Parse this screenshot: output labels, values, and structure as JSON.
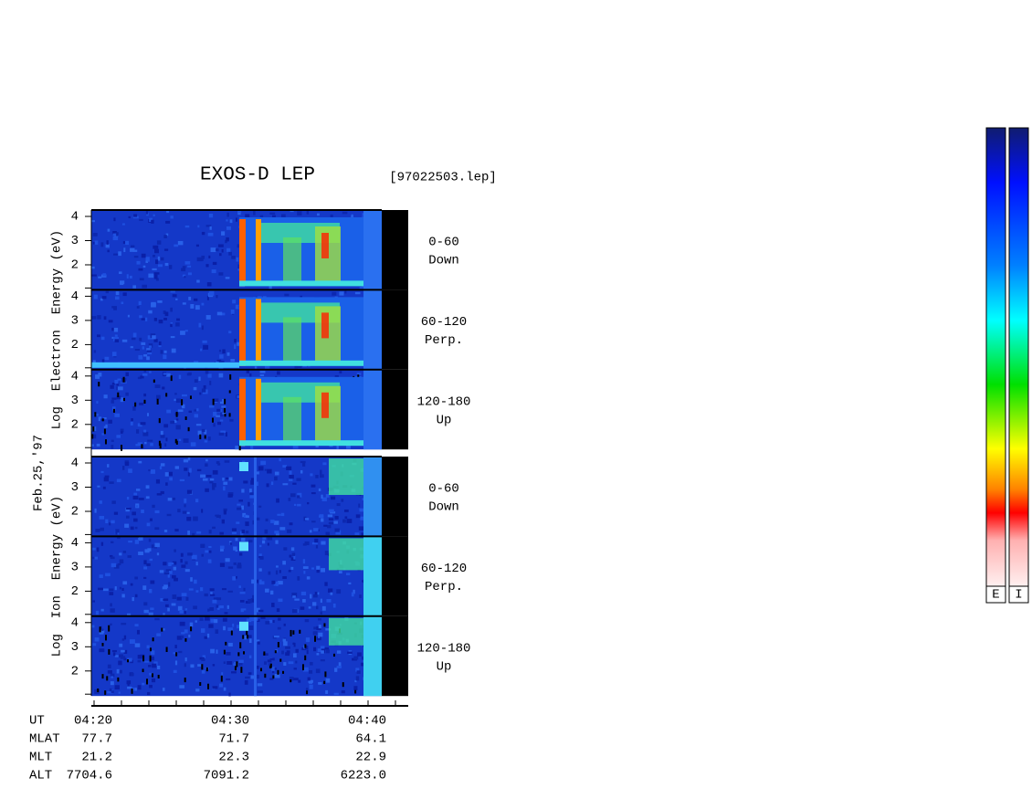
{
  "header": {
    "title": "EXOS-D LEP",
    "file": "[97022503.lep]"
  },
  "date": "Feb.25,'97",
  "electron": {
    "axis_label": "Log  Electron  Energy (eV)",
    "panels": [
      {
        "angle": "0-60",
        "direction": "Down"
      },
      {
        "angle": "60-120",
        "direction": "Perp."
      },
      {
        "angle": "120-180",
        "direction": "Up"
      }
    ],
    "ticks": [
      "4",
      "3",
      "2"
    ]
  },
  "ion": {
    "axis_label": "Log  Ion  Energy (eV)",
    "panels": [
      {
        "angle": "0-60",
        "direction": "Down"
      },
      {
        "angle": "60-120",
        "direction": "Perp."
      },
      {
        "angle": "120-180",
        "direction": "Up"
      }
    ],
    "ticks": [
      "4",
      "3",
      "2"
    ]
  },
  "table": {
    "rows": [
      [
        "UT",
        "04:20",
        "04:30",
        "04:40"
      ],
      [
        "MLAT",
        "77.7",
        "71.7",
        "64.1"
      ],
      [
        "MLT",
        "21.2",
        "22.3",
        "22.9"
      ],
      [
        "ALT",
        "7704.6",
        "7091.2",
        "6223.0"
      ]
    ]
  },
  "colorbars": [
    "E",
    "I"
  ]
}
